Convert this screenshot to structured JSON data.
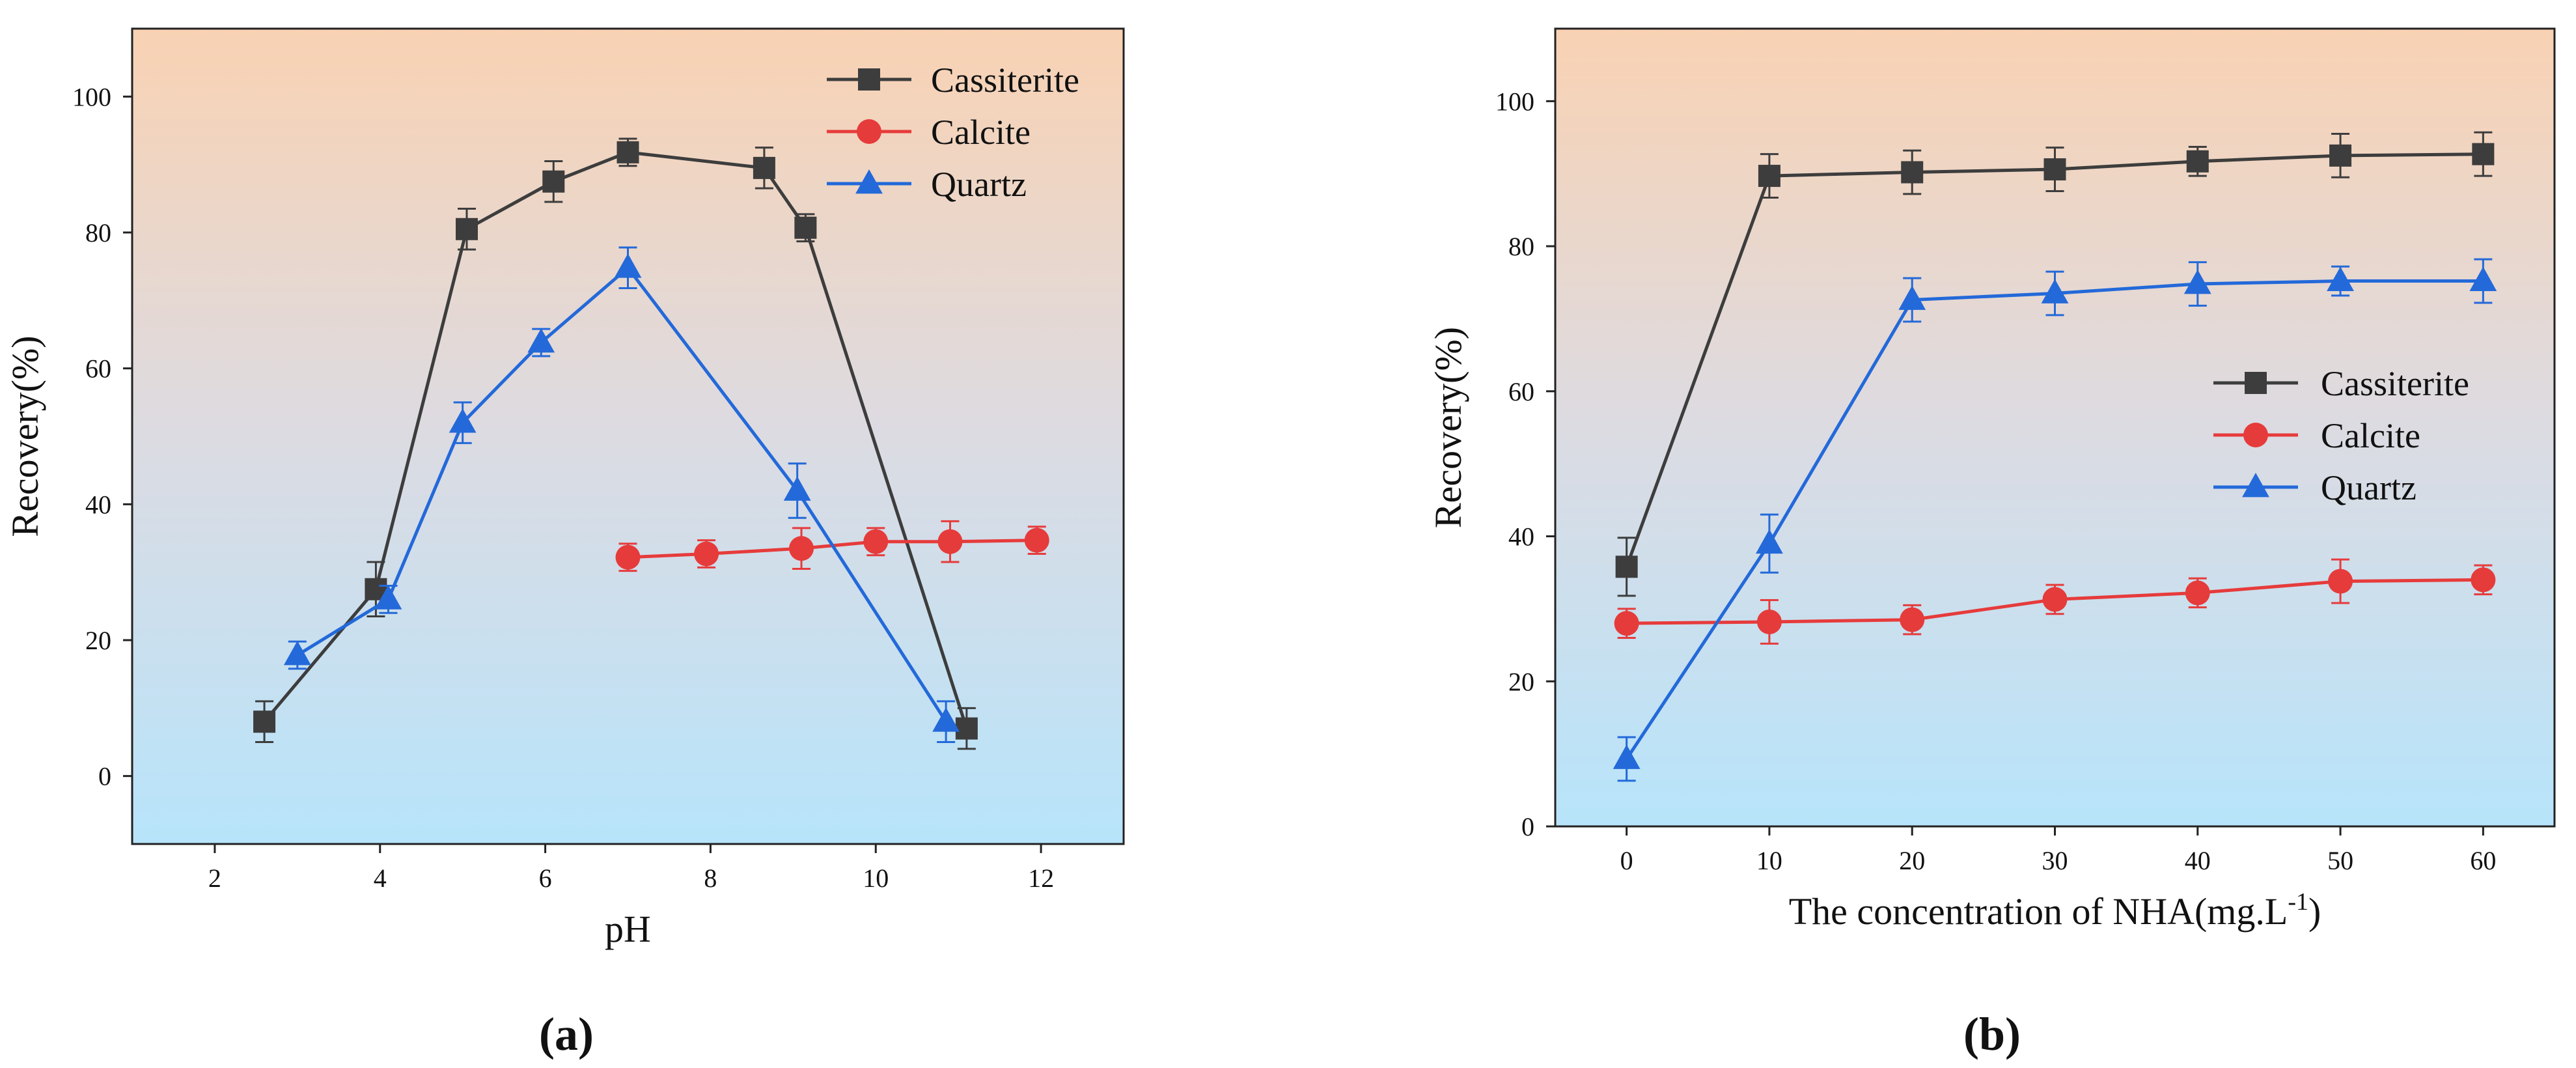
{
  "chart_data": [
    {
      "id": "a",
      "type": "line",
      "panel_label": "(a)",
      "title": "",
      "xlabel": "pH",
      "ylabel": "Recovery(%)",
      "xlim": [
        1,
        13
      ],
      "ylim": [
        -10,
        110
      ],
      "x_ticks": [
        2,
        4,
        6,
        8,
        10,
        12
      ],
      "y_ticks": [
        0,
        20,
        40,
        60,
        80,
        100
      ],
      "grid": false,
      "legend_position": "top-right",
      "series": [
        {
          "name": "Cassiterite",
          "color": "#3d3d3d",
          "marker": "square",
          "x": [
            2.6,
            3.95,
            5.05,
            6.1,
            7.0,
            8.65,
            9.15,
            11.1
          ],
          "y": [
            8.0,
            27.5,
            80.5,
            87.5,
            91.8,
            89.5,
            80.7,
            7.0
          ],
          "err": [
            3.0,
            4.0,
            3.0,
            3.0,
            2.0,
            3.0,
            2.0,
            3.0
          ]
        },
        {
          "name": "Calcite",
          "color": "#e63b3b",
          "marker": "circle",
          "x": [
            7.0,
            7.95,
            9.1,
            10.0,
            10.9,
            11.95
          ],
          "y": [
            32.2,
            32.7,
            33.5,
            34.5,
            34.5,
            34.7
          ],
          "err": [
            2.0,
            2.0,
            3.0,
            2.0,
            3.0,
            2.0
          ]
        },
        {
          "name": "Quartz",
          "color": "#2369d9",
          "marker": "triangle",
          "x": [
            3.0,
            4.1,
            5.0,
            5.95,
            7.0,
            9.05,
            10.85
          ],
          "y": [
            17.8,
            26.0,
            52.0,
            63.8,
            74.8,
            42.0,
            8.0
          ],
          "err": [
            2.0,
            2.0,
            3.0,
            2.0,
            3.0,
            4.0,
            3.0
          ]
        }
      ]
    },
    {
      "id": "b",
      "type": "line",
      "panel_label": "(b)",
      "title": "",
      "xlabel": "The concentration of NHA(mg.L-1)",
      "xlabel_main": "The concentration of NHA(mg.L",
      "xlabel_sup": "-1",
      "xlabel_end": ")",
      "ylabel": "Recovery(%)",
      "xlim": [
        -5,
        65
      ],
      "ylim": [
        0,
        110
      ],
      "x_ticks": [
        0,
        10,
        20,
        30,
        40,
        50,
        60
      ],
      "y_ticks": [
        0,
        20,
        40,
        60,
        80,
        100
      ],
      "grid": false,
      "legend_position": "center-right",
      "series": [
        {
          "name": "Cassiterite",
          "color": "#3d3d3d",
          "marker": "square",
          "x": [
            0,
            10,
            20,
            30,
            40,
            50,
            60
          ],
          "y": [
            35.8,
            89.7,
            90.2,
            90.6,
            91.7,
            92.5,
            92.7
          ],
          "err": [
            4.0,
            3.0,
            3.0,
            3.0,
            2.0,
            3.0,
            3.0
          ]
        },
        {
          "name": "Calcite",
          "color": "#e63b3b",
          "marker": "circle",
          "x": [
            0,
            10,
            20,
            30,
            40,
            50,
            60
          ],
          "y": [
            28.0,
            28.2,
            28.5,
            31.3,
            32.2,
            33.8,
            34.0
          ],
          "err": [
            2.0,
            3.0,
            2.0,
            2.0,
            2.0,
            3.0,
            2.0
          ]
        },
        {
          "name": "Quartz",
          "color": "#2369d9",
          "marker": "triangle",
          "x": [
            0,
            10,
            20,
            30,
            40,
            50,
            60
          ],
          "y": [
            9.3,
            39.0,
            72.6,
            73.5,
            74.8,
            75.2,
            75.2
          ],
          "err": [
            3.0,
            4.0,
            3.0,
            3.0,
            3.0,
            2.0,
            3.0
          ]
        }
      ]
    }
  ]
}
